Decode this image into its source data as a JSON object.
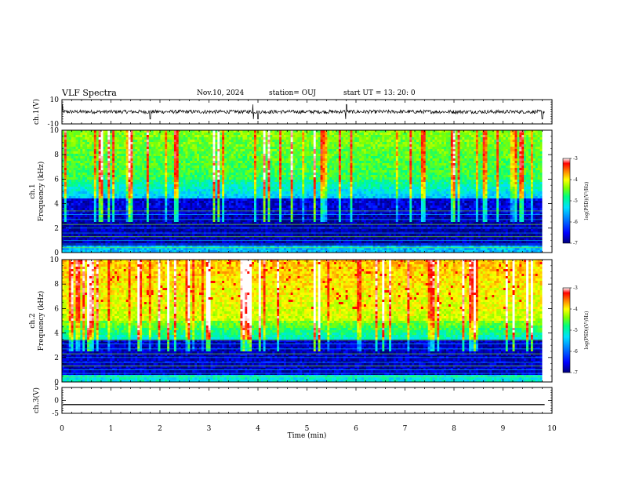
{
  "header": {
    "title": "VLF Spectra",
    "date": "Nov.10, 2024",
    "station": "station= OUJ",
    "start": "start  UT  =   13: 20: 0"
  },
  "chart_data": [
    {
      "type": "line",
      "panel": "ch1-waveform",
      "ylabel": "ch.1(V)",
      "ylim": [
        -10,
        10
      ],
      "yticks": [
        "10",
        "-10"
      ],
      "xlim": [
        0,
        10
      ],
      "description_values": {
        "baseline": 0,
        "noise_amplitude": 1.5,
        "spikes_min": [
          0.0,
          1.8,
          3.9,
          4.0,
          5.8,
          9.8
        ]
      }
    },
    {
      "type": "heatmap",
      "panel": "ch1-spectrogram",
      "ylabel": "ch.1\nFrequency (kHz)",
      "ylim": [
        0,
        10
      ],
      "yticks": [
        "0",
        "2",
        "4",
        "6",
        "8",
        "10"
      ],
      "xlim": [
        0,
        9.8
      ],
      "colorbar": {
        "label": "log(PSD)(V²/Hz)",
        "range": [
          -7,
          -3
        ],
        "ticks": [
          "-3",
          "-4",
          "-5",
          "-6",
          "-7"
        ]
      }
    },
    {
      "type": "heatmap",
      "panel": "ch2-spectrogram",
      "ylabel": "ch.2\nFrequency (kHz)",
      "ylim": [
        0,
        10
      ],
      "yticks": [
        "0",
        "2",
        "4",
        "6",
        "8",
        "10"
      ],
      "xlim": [
        0,
        9.8
      ],
      "colorbar": {
        "label": "log(PSD)(V²/Hz)",
        "range": [
          -7,
          -3
        ],
        "ticks": [
          "-3",
          "-4",
          "-5",
          "-6",
          "-7"
        ]
      }
    },
    {
      "type": "line",
      "panel": "ch3-waveform",
      "ylabel": "ch.3(V)",
      "ylim": [
        -5,
        5
      ],
      "yticks": [
        "5",
        "0",
        "-5"
      ],
      "xlim": [
        0,
        10
      ],
      "description_values": {
        "constant": -1.6
      }
    }
  ],
  "xaxis": {
    "label": "Time  (min)",
    "ticks": [
      "0",
      "1",
      "2",
      "3",
      "4",
      "5",
      "6",
      "7",
      "8",
      "9",
      "10"
    ],
    "range": [
      0,
      10
    ]
  },
  "colors": {
    "colormap": [
      "#00007a",
      "#0000ff",
      "#0088ff",
      "#00e0ff",
      "#00ff80",
      "#7fff00",
      "#ffff00",
      "#ff8000",
      "#ff0000",
      "#ffffff"
    ]
  }
}
